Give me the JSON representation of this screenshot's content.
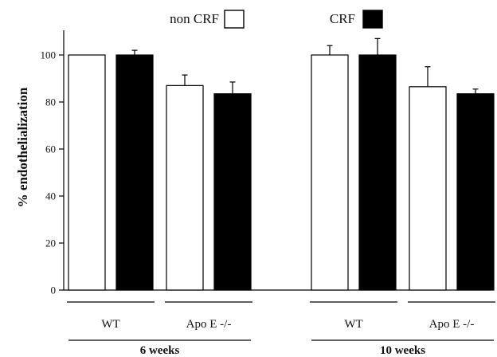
{
  "chart_data": {
    "type": "bar",
    "ylabel": "% endothelialization",
    "ylim": [
      0,
      110
    ],
    "yticks": [
      0,
      20,
      40,
      60,
      80,
      100
    ],
    "grid": false,
    "legend_position": "top",
    "series": [
      {
        "name": "non CRF",
        "color": "#ffffff"
      },
      {
        "name": "CRF",
        "color": "#000000"
      }
    ],
    "periods": [
      {
        "label": "6 weeks",
        "groups": [
          {
            "label": "WT",
            "values": [
              100,
              100
            ],
            "errors": [
              0,
              2
            ]
          },
          {
            "label": "Apo E -/-",
            "values": [
              87,
              83.5
            ],
            "errors": [
              4.5,
              5
            ]
          }
        ]
      },
      {
        "label": "10 weeks",
        "groups": [
          {
            "label": "WT",
            "values": [
              100,
              100
            ],
            "errors": [
              4,
              7
            ]
          },
          {
            "label": "Apo E -/-",
            "values": [
              86.5,
              83.5
            ],
            "errors": [
              8.5,
              2
            ]
          }
        ]
      }
    ]
  }
}
